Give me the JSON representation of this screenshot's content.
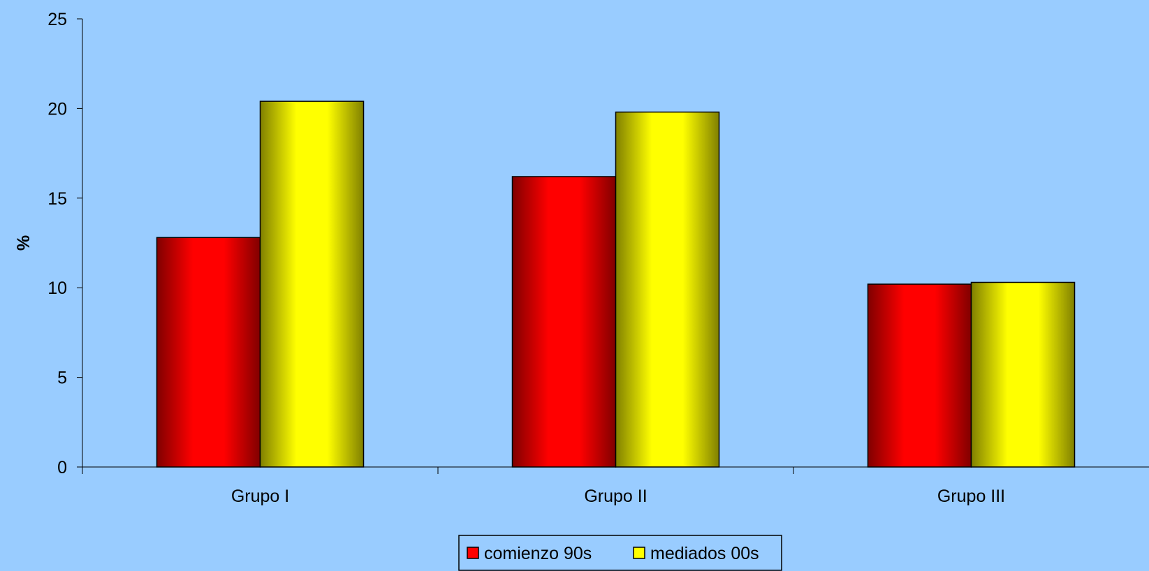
{
  "chart_data": {
    "type": "bar",
    "categories": [
      "Grupo I",
      "Grupo II",
      "Grupo III"
    ],
    "series": [
      {
        "name": "comienzo 90s",
        "values": [
          12.8,
          16.2,
          10.2
        ],
        "color": "#ff0000"
      },
      {
        "name": "mediados 00s",
        "values": [
          20.4,
          19.8,
          10.3
        ],
        "color": "#ffff00"
      }
    ],
    "title": "",
    "xlabel": "",
    "ylabel": "%",
    "ylim": [
      0,
      25
    ],
    "yticks": [
      0,
      5,
      10,
      15,
      20,
      25
    ],
    "grid": false,
    "legend_position": "bottom",
    "background": "#99ccff"
  }
}
